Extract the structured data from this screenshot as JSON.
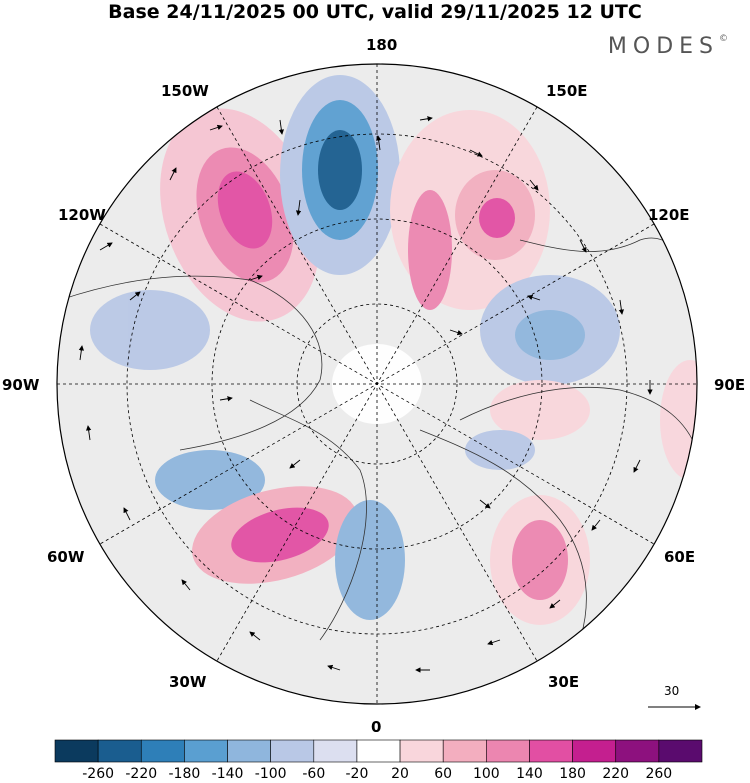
{
  "title": "Base 24/11/2025 00 UTC, valid 29/11/2025 12 UTC",
  "brand": {
    "name": "MODES",
    "mark": "©"
  },
  "longitude_labels": {
    "n180": "180",
    "w150": "150W",
    "e150": "150E",
    "w120": "120W",
    "e120": "120E",
    "w90": "90W",
    "e90": "90E",
    "w60": "60W",
    "e60": "60E",
    "w30": "30W",
    "e30": "30E",
    "zero": "0"
  },
  "reference_vector": {
    "value": "30"
  },
  "colorbar": {
    "ticks": [
      "-260",
      "-220",
      "-180",
      "-140",
      "-100",
      "-60",
      "-20",
      "20",
      "60",
      "100",
      "140",
      "180",
      "220",
      "260"
    ],
    "colors": [
      "#0b3a5e",
      "#1a5d8f",
      "#2e7fb8",
      "#5a9fd1",
      "#8fb6dd",
      "#b9c8e6",
      "#dcdff0",
      "#ffffff",
      "#f9d6dc",
      "#f3aebf",
      "#ec86b0",
      "#e24fa3",
      "#c41f8f",
      "#8d117e",
      "#5a0b6e"
    ]
  },
  "colors": {
    "background": "#ffffff",
    "text": "#000000",
    "land": "#e8e8e8",
    "outline": "#000000"
  }
}
